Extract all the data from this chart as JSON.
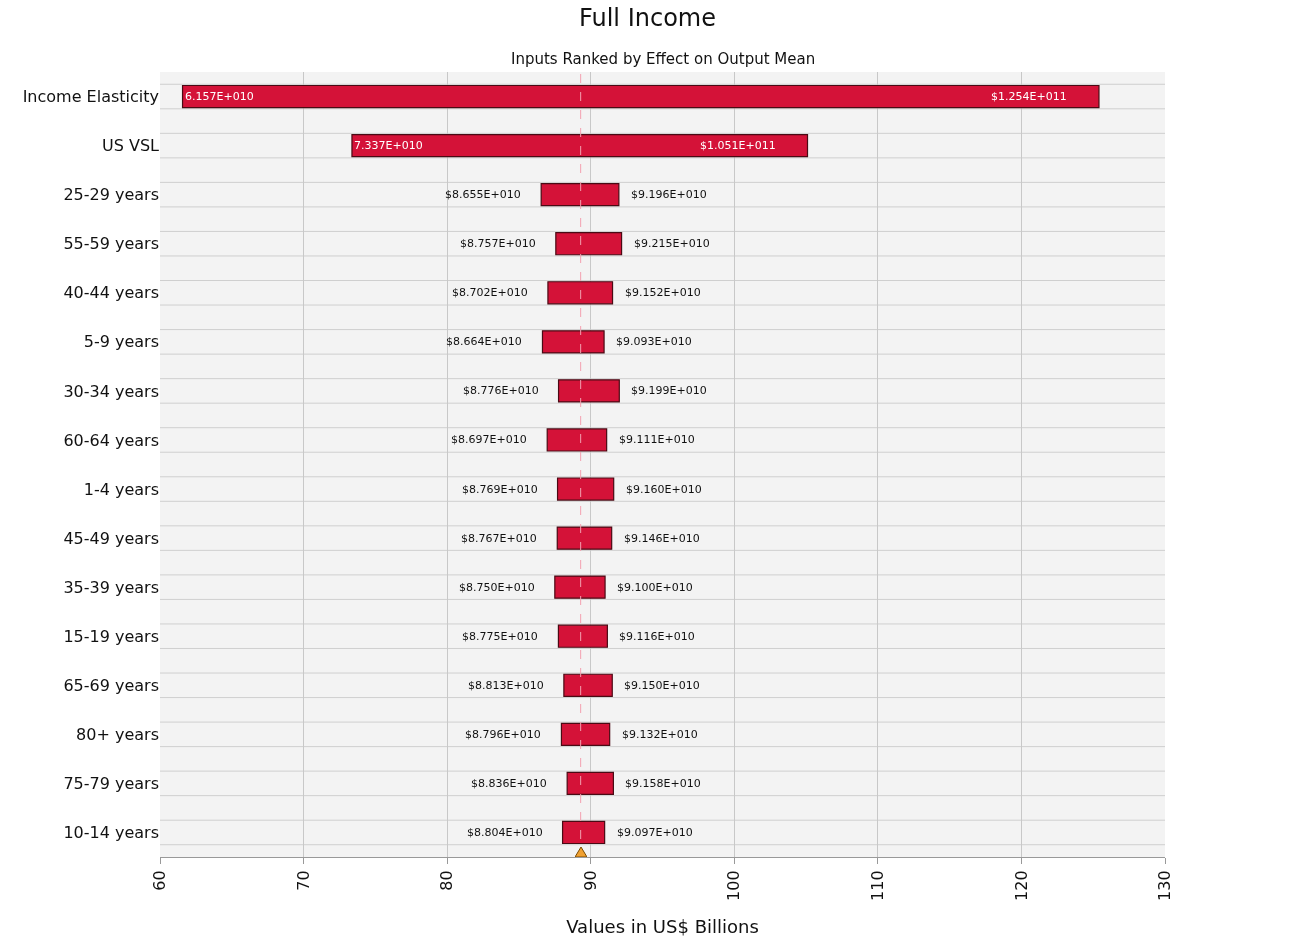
{
  "chart_data": {
    "type": "bar",
    "orientation": "horizontal",
    "title": "Full Income",
    "subtitle": "Inputs Ranked by Effect on Output Mean",
    "xlabel": "Values in US$ Billions",
    "categories": [
      "Income Elasticity",
      "US VSL",
      "25-29 years",
      "55-59 years",
      "40-44 years",
      "5-9 years",
      "30-34 years",
      "60-64 years",
      "1-4 years",
      "45-49 years",
      "35-39 years",
      "15-19 years",
      "65-69 years",
      "80+ years",
      "75-79 years",
      "10-14 years"
    ],
    "base": [
      61.57,
      73.37,
      86.55,
      87.57,
      87.02,
      86.64,
      87.76,
      86.97,
      87.69,
      87.67,
      87.5,
      87.75,
      88.13,
      87.96,
      88.36,
      88.04
    ],
    "values": [
      63.83,
      31.73,
      5.41,
      4.58,
      4.5,
      4.29,
      4.23,
      4.14,
      3.91,
      3.79,
      3.5,
      3.41,
      3.37,
      3.36,
      3.22,
      2.93
    ],
    "color": "#d41238",
    "xlim": [
      60,
      130
    ],
    "xticks": [
      60,
      70,
      80,
      90,
      100,
      110,
      120,
      130
    ],
    "grid": "x",
    "ref_lines": [
      {
        "axis": "x",
        "value": 89.3,
        "color": "#f4a0b0",
        "line_style": "dashed"
      }
    ],
    "annotations": [
      {
        "text": "6.157E+010",
        "x": 61.57,
        "y": "Income Elasticity"
      },
      {
        "text": "$1.254E+011",
        "x": 125.4,
        "y": "Income Elasticity"
      },
      {
        "text": "7.337E+010",
        "x": 73.37,
        "y": "US VSL"
      },
      {
        "text": "$1.051E+011",
        "x": 105.1,
        "y": "US VSL"
      },
      {
        "text": "$8.655E+010",
        "x": 86.55,
        "y": "25-29 years"
      },
      {
        "text": "$9.196E+010",
        "x": 91.96,
        "y": "25-29 years"
      },
      {
        "text": "$8.757E+010",
        "x": 87.57,
        "y": "55-59 years"
      },
      {
        "text": "$9.215E+010",
        "x": 92.15,
        "y": "55-59 years"
      },
      {
        "text": "$8.702E+010",
        "x": 87.02,
        "y": "40-44 years"
      },
      {
        "text": "$9.152E+010",
        "x": 91.52,
        "y": "40-44 years"
      },
      {
        "text": "$8.664E+010",
        "x": 86.64,
        "y": "5-9 years"
      },
      {
        "text": "$9.093E+010",
        "x": 90.93,
        "y": "5-9 years"
      },
      {
        "text": "$8.776E+010",
        "x": 87.76,
        "y": "30-34 years"
      },
      {
        "text": "$9.199E+010",
        "x": 91.99,
        "y": "30-34 years"
      },
      {
        "text": "$8.697E+010",
        "x": 86.97,
        "y": "60-64 years"
      },
      {
        "text": "$9.111E+010",
        "x": 91.11,
        "y": "60-64 years"
      },
      {
        "text": "$8.769E+010",
        "x": 87.69,
        "y": "1-4 years"
      },
      {
        "text": "$9.160E+010",
        "x": 91.6,
        "y": "1-4 years"
      },
      {
        "text": "$8.767E+010",
        "x": 87.67,
        "y": "45-49 years"
      },
      {
        "text": "$9.146E+010",
        "x": 91.46,
        "y": "45-49 years"
      },
      {
        "text": "$8.750E+010",
        "x": 87.5,
        "y": "35-39 years"
      },
      {
        "text": "$9.100E+010",
        "x": 91.0,
        "y": "35-39 years"
      },
      {
        "text": "$8.775E+010",
        "x": 87.75,
        "y": "15-19 years"
      },
      {
        "text": "$9.116E+010",
        "x": 91.16,
        "y": "15-19 years"
      },
      {
        "text": "$8.813E+010",
        "x": 88.13,
        "y": "65-69 years"
      },
      {
        "text": "$9.150E+010",
        "x": 91.5,
        "y": "65-69 years"
      },
      {
        "text": "$8.796E+010",
        "x": 87.96,
        "y": "80+ years"
      },
      {
        "text": "$9.132E+010",
        "x": 91.32,
        "y": "80+ years"
      },
      {
        "text": "$8.836E+010",
        "x": 88.36,
        "y": "75-79 years"
      },
      {
        "text": "$9.158E+010",
        "x": 91.58,
        "y": "75-79 years"
      },
      {
        "text": "$8.804E+010",
        "x": 88.04,
        "y": "10-14 years"
      },
      {
        "text": "$9.097E+010",
        "x": 90.97,
        "y": "10-14 years"
      }
    ]
  }
}
